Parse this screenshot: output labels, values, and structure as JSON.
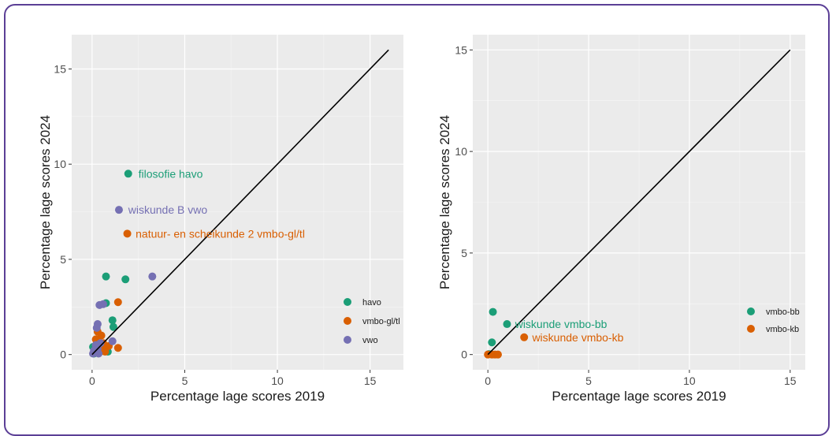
{
  "frame_color": "#5b3f96",
  "chart_data": [
    {
      "type": "scatter",
      "xlabel": "Percentage lage scores 2019",
      "ylabel": "Percentage lage scores 2024",
      "xlim": [
        -1.1,
        16.8
      ],
      "ylim": [
        -0.8,
        16.8
      ],
      "x_ticks": [
        0,
        5,
        10,
        15
      ],
      "y_ticks": [
        0,
        5,
        10,
        15
      ],
      "grid": true,
      "legend_position": "right",
      "reference_line": {
        "from": [
          0,
          0
        ],
        "to": [
          16,
          16
        ],
        "color": "#000000"
      },
      "series": [
        {
          "name": "havo",
          "color": "#1b9e77",
          "points": [
            [
              1.95,
              9.5
            ],
            [
              0.75,
              4.1
            ],
            [
              1.8,
              3.95
            ],
            [
              0.75,
              2.7
            ],
            [
              1.1,
              1.8
            ],
            [
              1.15,
              1.45
            ],
            [
              0.05,
              0.4
            ],
            [
              0.15,
              0.3
            ],
            [
              0.6,
              0.2
            ],
            [
              0.85,
              0.15
            ],
            [
              0.2,
              0.1
            ],
            [
              0.1,
              0.05
            ]
          ]
        },
        {
          "name": "vmbo-gl/tl",
          "color": "#d95f02",
          "points": [
            [
              1.9,
              6.35
            ],
            [
              1.4,
              2.75
            ],
            [
              1.4,
              0.35
            ],
            [
              0.3,
              1.2
            ],
            [
              0.5,
              1.0
            ],
            [
              0.2,
              0.8
            ],
            [
              0.6,
              0.6
            ],
            [
              0.4,
              0.5
            ],
            [
              0.9,
              0.45
            ],
            [
              0.55,
              0.3
            ],
            [
              0.3,
              0.2
            ],
            [
              0.7,
              0.15
            ]
          ]
        },
        {
          "name": "vwo",
          "color": "#7570b3",
          "points": [
            [
              1.45,
              7.6
            ],
            [
              3.25,
              4.1
            ],
            [
              0.4,
              2.6
            ],
            [
              0.6,
              2.65
            ],
            [
              0.3,
              1.6
            ],
            [
              0.25,
              1.4
            ],
            [
              1.1,
              0.7
            ],
            [
              0.45,
              0.6
            ],
            [
              0.2,
              0.5
            ],
            [
              0.3,
              0.3
            ],
            [
              0.1,
              0.2
            ],
            [
              0.15,
              0.1
            ],
            [
              0.05,
              0.05
            ],
            [
              0.35,
              0.05
            ]
          ]
        }
      ],
      "annotations": [
        {
          "text": "filosofie havo",
          "x": 2.5,
          "y": 9.5,
          "series": "havo"
        },
        {
          "text": "wiskunde B vwo",
          "x": 1.95,
          "y": 7.6,
          "series": "vwo"
        },
        {
          "text": "natuur- en scheikunde 2 vmbo-gl/tl",
          "x": 2.35,
          "y": 6.35,
          "series": "vmbo-gl/tl"
        }
      ]
    },
    {
      "type": "scatter",
      "xlabel": "Percentage lage scores 2019",
      "ylabel": "Percentage lage scores 2024",
      "xlim": [
        -0.75,
        15.75
      ],
      "ylim": [
        -0.75,
        15.75
      ],
      "x_ticks": [
        0,
        5,
        10,
        15
      ],
      "y_ticks": [
        0,
        5,
        10,
        15
      ],
      "grid": true,
      "legend_position": "right",
      "reference_line": {
        "from": [
          0,
          0
        ],
        "to": [
          15,
          15
        ],
        "color": "#000000"
      },
      "series": [
        {
          "name": "vmbo-bb",
          "color": "#1b9e77",
          "points": [
            [
              0.25,
              2.1
            ],
            [
              0.95,
              1.5
            ],
            [
              0.2,
              0.6
            ],
            [
              0.05,
              0.02
            ]
          ]
        },
        {
          "name": "vmbo-kb",
          "color": "#d95f02",
          "points": [
            [
              1.8,
              0.85
            ],
            [
              0.0,
              0.0
            ],
            [
              0.2,
              0.0
            ],
            [
              0.35,
              0.0
            ],
            [
              0.5,
              0.0
            ]
          ]
        }
      ],
      "annotations": [
        {
          "text": "wiskunde vmbo-bb",
          "x": 1.35,
          "y": 1.5,
          "series": "vmbo-bb"
        },
        {
          "text": "wiskunde vmbo-kb",
          "x": 2.2,
          "y": 0.85,
          "series": "vmbo-kb"
        }
      ]
    }
  ]
}
